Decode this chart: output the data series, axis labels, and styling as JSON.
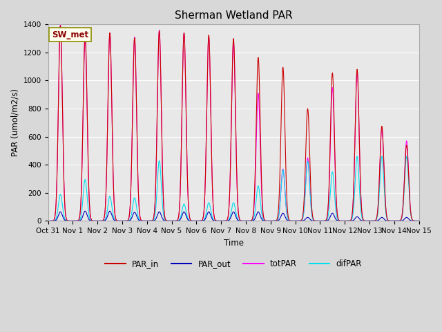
{
  "title": "Sherman Wetland PAR",
  "ylabel": "PAR (umol/m2/s)",
  "xlabel": "Time",
  "annotation": "SW_met",
  "ylim": [
    0,
    1400
  ],
  "axes_bg_color": "#e8e8e8",
  "colors": {
    "PAR_in": "#cc0000",
    "PAR_out": "#0000bb",
    "totPAR": "#ff00ff",
    "difPAR": "#00ddee"
  },
  "day_peaks": [
    {
      "PAR_in": 1390,
      "PAR_out": 65,
      "totPAR": 1400,
      "difPAR": 190
    },
    {
      "PAR_in": 1340,
      "PAR_out": 70,
      "totPAR": 1300,
      "difPAR": 295
    },
    {
      "PAR_in": 1340,
      "PAR_out": 70,
      "totPAR": 1340,
      "difPAR": 175
    },
    {
      "PAR_in": 1305,
      "PAR_out": 62,
      "totPAR": 1310,
      "difPAR": 165
    },
    {
      "PAR_in": 1355,
      "PAR_out": 65,
      "totPAR": 1360,
      "difPAR": 430
    },
    {
      "PAR_in": 1340,
      "PAR_out": 65,
      "totPAR": 1340,
      "difPAR": 120
    },
    {
      "PAR_in": 1325,
      "PAR_out": 65,
      "totPAR": 1310,
      "difPAR": 130
    },
    {
      "PAR_in": 1300,
      "PAR_out": 65,
      "totPAR": 1270,
      "difPAR": 130
    },
    {
      "PAR_in": 1165,
      "PAR_out": 65,
      "totPAR": 910,
      "difPAR": 250
    },
    {
      "PAR_in": 1095,
      "PAR_out": 55,
      "totPAR": 370,
      "difPAR": 365
    },
    {
      "PAR_in": 800,
      "PAR_out": 25,
      "totPAR": 450,
      "difPAR": 425
    },
    {
      "PAR_in": 1055,
      "PAR_out": 55,
      "totPAR": 950,
      "difPAR": 350
    },
    {
      "PAR_in": 1080,
      "PAR_out": 30,
      "totPAR": 1060,
      "difPAR": 460
    },
    {
      "PAR_in": 675,
      "PAR_out": 25,
      "totPAR": 655,
      "difPAR": 460
    },
    {
      "PAR_in": 540,
      "PAR_out": 25,
      "totPAR": 570,
      "difPAR": 460
    }
  ],
  "xtick_labels": [
    "Oct 31",
    "Nov 1",
    "Nov 2",
    "Nov 3",
    "Nov 4",
    "Nov 5",
    "Nov 6",
    "Nov 7",
    "Nov 8",
    "Nov 9",
    "Nov 10",
    "Nov 11",
    "Nov 12",
    "Nov 13",
    "Nov 14",
    "Nov 15"
  ],
  "xtick_positions": [
    0,
    1,
    2,
    3,
    4,
    5,
    6,
    7,
    8,
    9,
    10,
    11,
    12,
    13,
    14,
    15
  ]
}
